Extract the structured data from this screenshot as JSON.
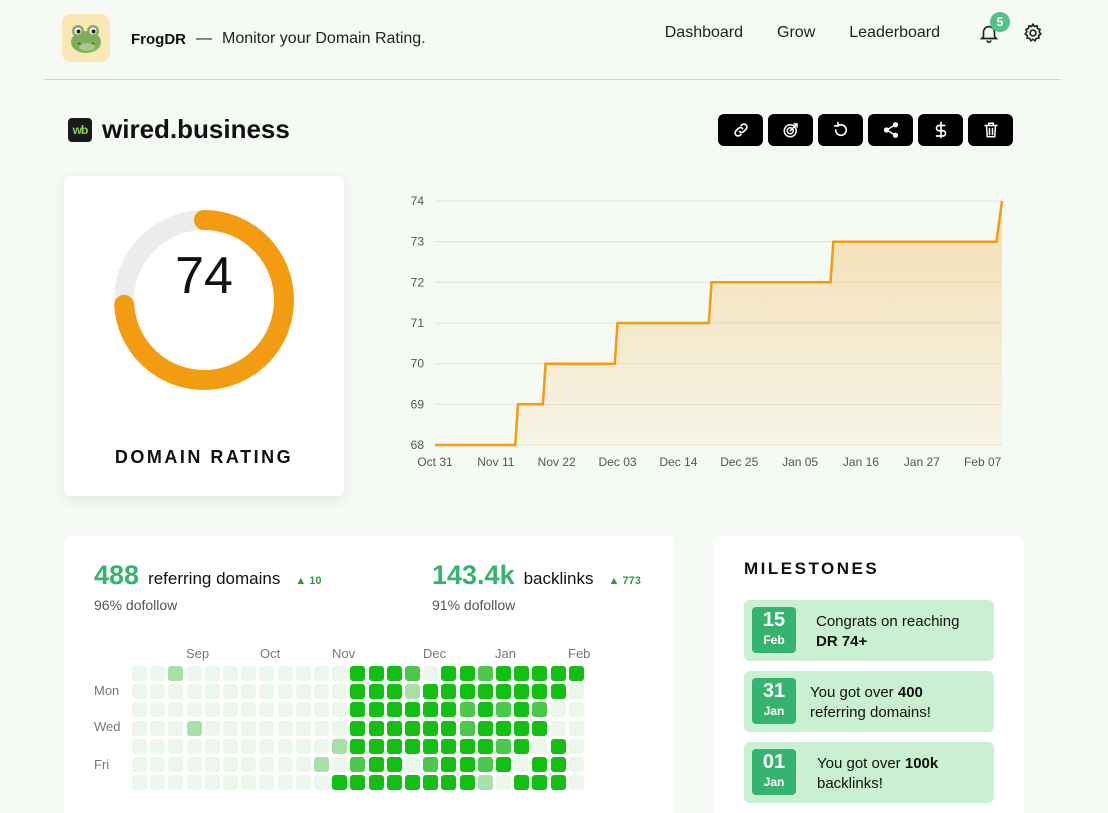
{
  "brand": {
    "name": "FrogDR",
    "dash": "—",
    "tagline": "Monitor your Domain Rating."
  },
  "nav": {
    "items": [
      "Dashboard",
      "Grow",
      "Leaderboard"
    ],
    "notification_count": "5"
  },
  "site": {
    "logo_text": "wb",
    "name": "wired.business"
  },
  "actions": [
    "link-icon",
    "target-icon",
    "refresh-icon",
    "share-icon",
    "dollar-icon",
    "trash-icon"
  ],
  "dr": {
    "value": "74",
    "label": "DOMAIN RATING",
    "percent": 74,
    "color": "#f39c12"
  },
  "chart_data": {
    "type": "area",
    "title": "",
    "xlabel": "",
    "ylabel": "",
    "ylim": [
      68,
      74
    ],
    "yticks": [
      "74",
      "73",
      "72",
      "71",
      "70",
      "69",
      "68"
    ],
    "xticks": [
      "Oct 31",
      "Nov 11",
      "Nov 22",
      "Dec 03",
      "Dec 14",
      "Dec 25",
      "Jan 05",
      "Jan 16",
      "Jan 27",
      "Feb 07"
    ],
    "series": [
      {
        "name": "Domain Rating",
        "color": "#f39c12",
        "points": [
          [
            0,
            68
          ],
          [
            14.5,
            68
          ],
          [
            15,
            69
          ],
          [
            19.5,
            69
          ],
          [
            20,
            70
          ],
          [
            32.5,
            70
          ],
          [
            33,
            71
          ],
          [
            49.5,
            71
          ],
          [
            50,
            72
          ],
          [
            71.5,
            72
          ],
          [
            72,
            73
          ],
          [
            101.5,
            73
          ],
          [
            102.5,
            74
          ]
        ]
      }
    ]
  },
  "stats": {
    "referring": {
      "value": "488",
      "label": "referring domains",
      "delta": "10",
      "sub": "96% dofollow"
    },
    "backlinks": {
      "value": "143.4k",
      "label": "backlinks",
      "delta": "773",
      "sub": "91% dofollow"
    }
  },
  "heatmap": {
    "months": [
      "Sep",
      "Oct",
      "Nov",
      "Dec",
      "Jan",
      "Feb"
    ],
    "days": [
      "Mon",
      "Wed",
      "Fri"
    ],
    "levels": [
      [
        1,
        1,
        2,
        1,
        1,
        1,
        1,
        1,
        1,
        1,
        1,
        1,
        4,
        4,
        4,
        3,
        1,
        4,
        4,
        3,
        4,
        4,
        4,
        4,
        4
      ],
      [
        1,
        1,
        1,
        1,
        1,
        1,
        1,
        1,
        1,
        1,
        1,
        1,
        4,
        4,
        4,
        2,
        4,
        4,
        4,
        4,
        4,
        4,
        4,
        4,
        1
      ],
      [
        1,
        1,
        1,
        1,
        1,
        1,
        1,
        1,
        1,
        1,
        1,
        1,
        4,
        4,
        4,
        4,
        4,
        4,
        3,
        4,
        3,
        4,
        3,
        1,
        1
      ],
      [
        1,
        1,
        1,
        2,
        1,
        1,
        1,
        1,
        1,
        1,
        1,
        1,
        4,
        4,
        4,
        4,
        4,
        4,
        3,
        4,
        4,
        4,
        4,
        1,
        1
      ],
      [
        1,
        1,
        1,
        1,
        1,
        1,
        1,
        1,
        1,
        1,
        1,
        2,
        4,
        4,
        4,
        4,
        4,
        4,
        4,
        4,
        3,
        4,
        1,
        4,
        1
      ],
      [
        1,
        1,
        1,
        1,
        1,
        1,
        1,
        1,
        1,
        1,
        2,
        1,
        3,
        4,
        4,
        1,
        3,
        4,
        4,
        3,
        4,
        1,
        4,
        4,
        1
      ],
      [
        1,
        1,
        1,
        1,
        1,
        1,
        1,
        1,
        1,
        1,
        1,
        4,
        4,
        4,
        4,
        4,
        4,
        4,
        4,
        2,
        1,
        4,
        4,
        4,
        1
      ]
    ]
  },
  "milestones": {
    "title": "MILESTONES",
    "items": [
      {
        "day": "15",
        "month": "Feb",
        "text_before": "Congrats on reaching",
        "text_bold": "DR 74+",
        "text_after": ""
      },
      {
        "day": "31",
        "month": "Jan",
        "text_before": "You got over ",
        "text_bold": "400",
        "text_after": "referring domains!"
      },
      {
        "day": "01",
        "month": "Jan",
        "text_before": "You got over ",
        "text_bold": "100k",
        "text_after": "backlinks!"
      }
    ]
  }
}
